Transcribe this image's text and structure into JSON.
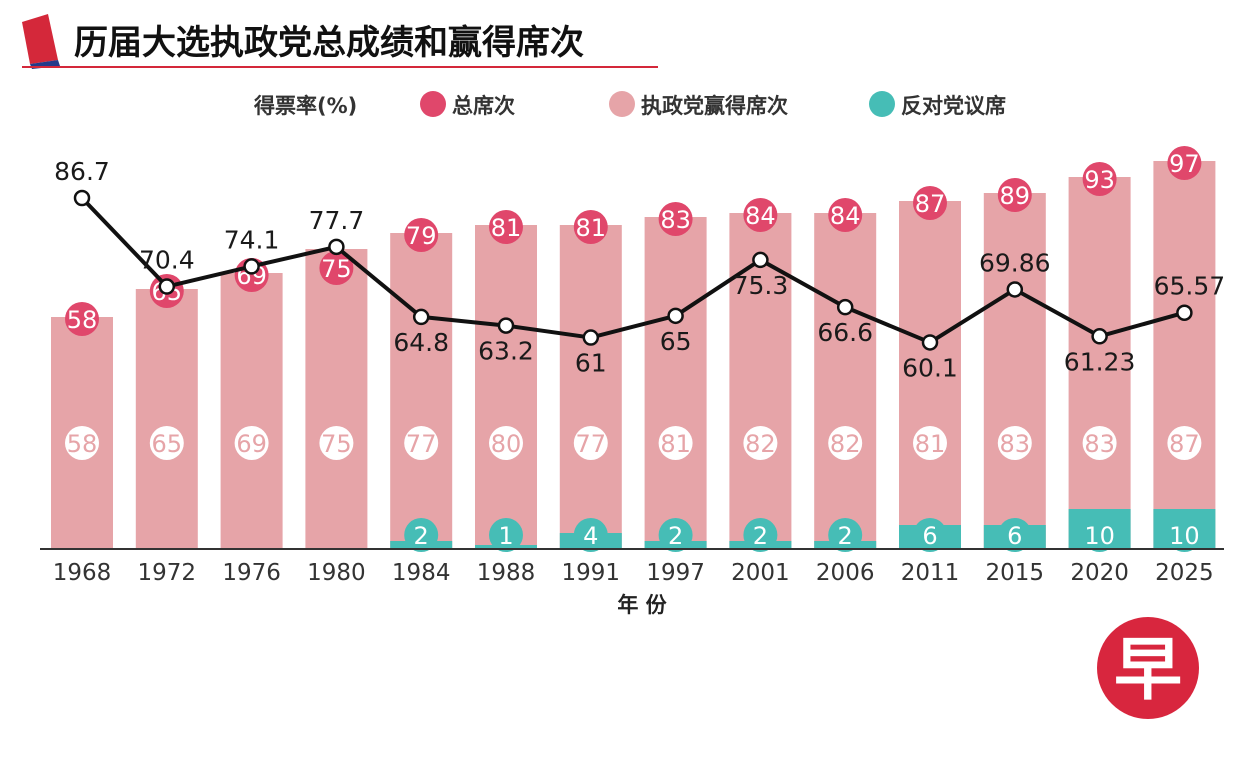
{
  "title": "历届大选执政党总成绩和赢得席次",
  "legend": {
    "vote_share": "得票率(%)",
    "total_seats": "总席次",
    "ruling_seats": "执政党赢得席次",
    "opposition_seats": "反对党议席"
  },
  "colors": {
    "total": "#e0476b",
    "ruling": "#e6a4a8",
    "opposition": "#46bdb6",
    "line": "#111111",
    "title_rule": "#d4283a"
  },
  "logo_text": "早",
  "chart_data": {
    "type": "bar",
    "xlabel": "年 份",
    "categories": [
      "1968",
      "1972",
      "1976",
      "1980",
      "1984",
      "1988",
      "1991",
      "1997",
      "2001",
      "2006",
      "2011",
      "2015",
      "2020",
      "2025"
    ],
    "series": [
      {
        "name": "总席次",
        "values": [
          58,
          65,
          69,
          75,
          79,
          81,
          81,
          83,
          84,
          84,
          87,
          89,
          93,
          97
        ]
      },
      {
        "name": "执政党赢得席次",
        "values": [
          58,
          65,
          69,
          75,
          77,
          80,
          77,
          81,
          82,
          82,
          81,
          83,
          83,
          87
        ]
      },
      {
        "name": "反对党议席",
        "values": [
          null,
          null,
          null,
          null,
          2,
          1,
          4,
          2,
          2,
          2,
          6,
          6,
          10,
          10
        ]
      },
      {
        "name": "得票率(%)",
        "type": "line",
        "values": [
          "86.7",
          "70.4",
          "74.1",
          "77.7",
          "64.8",
          "63.2",
          "61",
          "65",
          "75.3",
          "66.6",
          "60.1",
          "69.86",
          "61.23",
          "65.57"
        ]
      }
    ],
    "grid": false
  }
}
